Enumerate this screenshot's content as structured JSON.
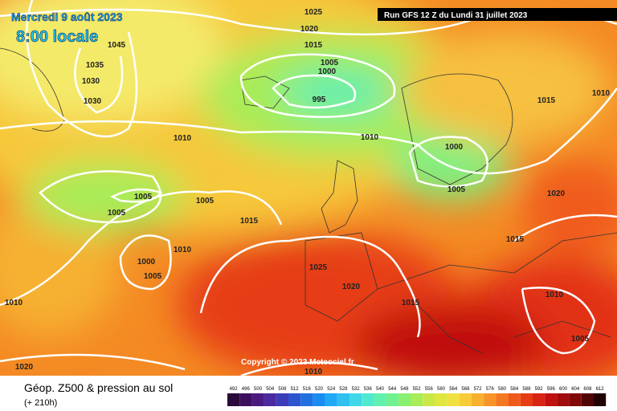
{
  "header": {
    "date": "Mercredi 9 août 2023",
    "time": "8:00 locale",
    "run": "Run GFS 12 Z du Lundi 31 juillet 2023"
  },
  "copyright": "Copyright © 2023 Meteociel.fr",
  "footer": {
    "title": "Géop. Z500 & pression au sol",
    "lead": "(+ 210h)"
  },
  "isobar_labels": [
    1025,
    1020,
    1015,
    1045,
    1035,
    1030,
    1030,
    1005,
    1000,
    995,
    1015,
    1010,
    1010,
    1010,
    1000,
    1005,
    1005,
    1005,
    1005,
    1020,
    1015,
    1015,
    1000,
    1010,
    1005,
    1025,
    1020,
    1010,
    1015,
    1010,
    1005,
    1010,
    1020
  ],
  "legend": {
    "ticks": [
      492,
      496,
      500,
      504,
      508,
      512,
      516,
      520,
      524,
      528,
      532,
      536,
      540,
      544,
      548,
      552,
      556,
      560,
      564,
      568,
      572,
      576,
      580,
      584,
      588,
      592,
      596,
      600,
      604,
      608,
      612
    ],
    "colors": [
      "#2a0a3a",
      "#3c0f5e",
      "#4b1a80",
      "#4a2a9e",
      "#3c3cb8",
      "#2d55d0",
      "#2070e0",
      "#1a8cf0",
      "#20a8f5",
      "#30c0f0",
      "#40d8e8",
      "#50e8d0",
      "#60f0b0",
      "#70f090",
      "#88f070",
      "#a8ec58",
      "#c8e848",
      "#e0e640",
      "#f0e040",
      "#f8cc38",
      "#f8b030",
      "#f89428",
      "#f47820",
      "#ee5a1a",
      "#e63c16",
      "#d82414",
      "#c01010",
      "#a00c0c",
      "#800808",
      "#500404",
      "#200000"
    ]
  }
}
